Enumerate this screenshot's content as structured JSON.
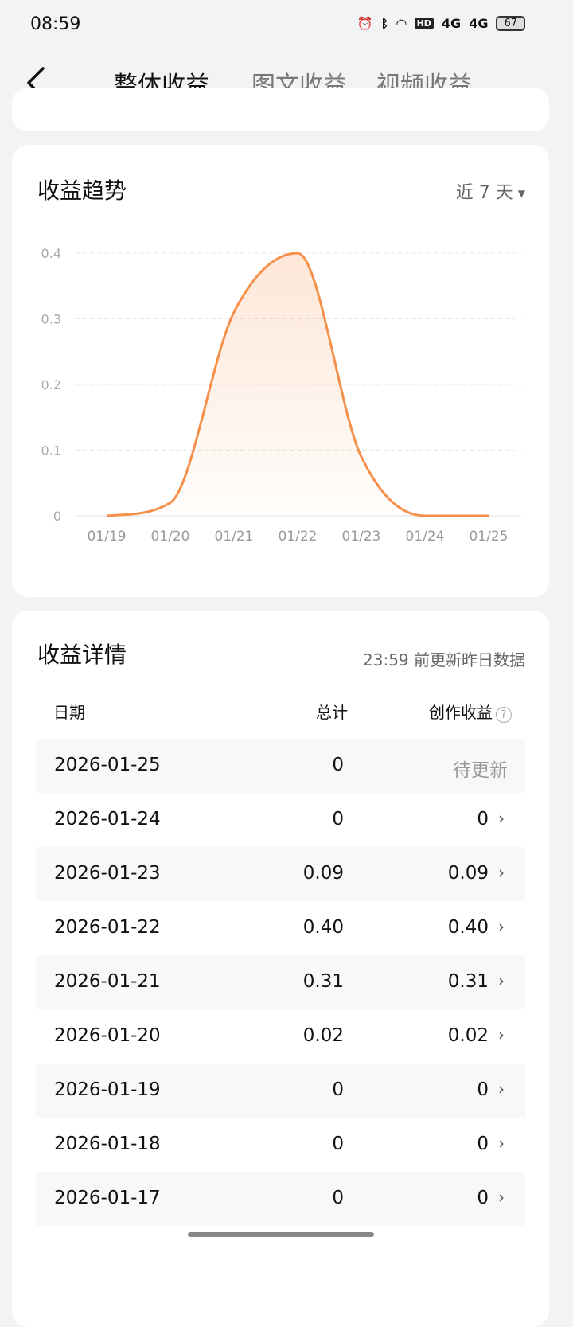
{
  "status_bar": {
    "time": "08:59",
    "battery": "67",
    "icons": [
      "alarm-icon",
      "bluetooth-icon",
      "wifi-icon",
      "hd-icon",
      "signal-4g-icon",
      "signal-4g-icon",
      "battery-icon"
    ],
    "hd_label": "HD",
    "net1": "4G",
    "net2": "4G"
  },
  "nav": {
    "tabs": [
      {
        "label": "整体收益",
        "active": true
      },
      {
        "label": "图文收益"
      },
      {
        "label": "视频收益"
      }
    ]
  },
  "trend": {
    "title": "收益趋势",
    "range": "近 7 天"
  },
  "chart_data": {
    "type": "area",
    "x": [
      "01/19",
      "01/20",
      "01/21",
      "01/22",
      "01/23",
      "01/24",
      "01/25"
    ],
    "values": [
      0,
      0.02,
      0.31,
      0.4,
      0.09,
      0,
      0
    ],
    "yticks": [
      0,
      0.1,
      0.2,
      0.3,
      0.4
    ],
    "ylim": [
      0,
      0.4
    ],
    "grid": true,
    "color": "#f5904a"
  },
  "details": {
    "title": "收益详情",
    "note": "23:59 前更新昨日数据",
    "headers": [
      "日期",
      "总计",
      "创作收益"
    ],
    "rows": [
      {
        "date": "2026-01-25",
        "total": "0",
        "creation": "待更新",
        "pending": true
      },
      {
        "date": "2026-01-24",
        "total": "0",
        "creation": "0"
      },
      {
        "date": "2026-01-23",
        "total": "0.09",
        "creation": "0.09"
      },
      {
        "date": "2026-01-22",
        "total": "0.40",
        "creation": "0.40"
      },
      {
        "date": "2026-01-21",
        "total": "0.31",
        "creation": "0.31"
      },
      {
        "date": "2026-01-20",
        "total": "0.02",
        "creation": "0.02"
      },
      {
        "date": "2026-01-19",
        "total": "0",
        "creation": "0"
      },
      {
        "date": "2026-01-18",
        "total": "0",
        "creation": "0"
      },
      {
        "date": "2026-01-17",
        "total": "0",
        "creation": "0"
      }
    ]
  }
}
